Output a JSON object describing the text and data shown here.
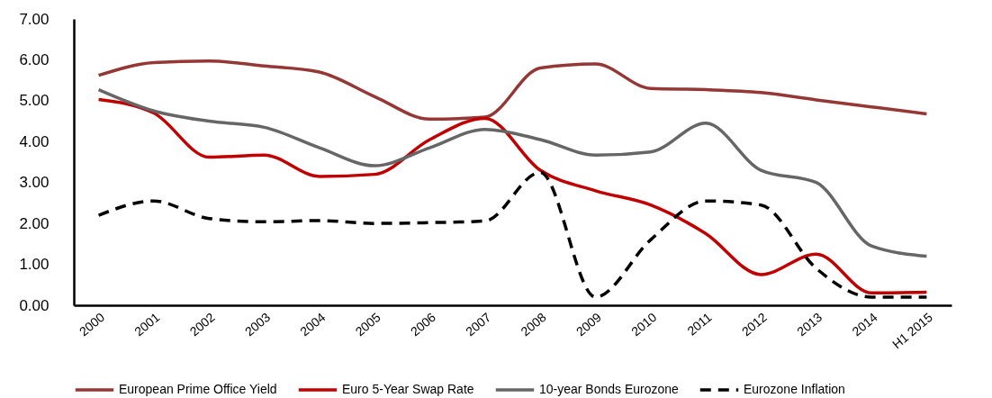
{
  "chart_data": {
    "type": "line",
    "categories": [
      "2000",
      "2001",
      "2002",
      "2003",
      "2004",
      "2005",
      "2006",
      "2007",
      "2008",
      "2009",
      "2010",
      "2011",
      "2012",
      "2013",
      "2014",
      "H1 2015"
    ],
    "series": [
      {
        "name": "European Prime Office Yield",
        "color": "#953735",
        "values": [
          5.62,
          5.93,
          5.97,
          5.85,
          5.7,
          5.1,
          4.55,
          4.6,
          5.8,
          5.9,
          5.3,
          5.27,
          5.2,
          5.02,
          4.85,
          4.68
        ]
      },
      {
        "name": "Euro 5-Year Swap Rate",
        "color": "#c00000",
        "values": [
          5.03,
          4.7,
          3.62,
          3.67,
          3.15,
          3.2,
          4.05,
          4.57,
          3.3,
          2.8,
          2.45,
          1.75,
          0.75,
          1.25,
          0.3,
          0.32
        ]
      },
      {
        "name": "10-year Bonds Eurozone",
        "color": "#666666",
        "values": [
          5.27,
          4.75,
          4.5,
          4.35,
          3.85,
          3.41,
          3.85,
          4.3,
          4.05,
          3.67,
          3.75,
          4.45,
          3.3,
          3.0,
          1.45,
          1.2
        ]
      },
      {
        "name": "Eurozone Inflation",
        "color": "#000000",
        "line_style": "dashed",
        "values": [
          2.2,
          2.55,
          2.12,
          2.04,
          2.07,
          2.0,
          2.02,
          2.06,
          3.25,
          0.2,
          1.6,
          2.55,
          2.45,
          0.9,
          0.2,
          0.2
        ]
      }
    ],
    "ylim": [
      0,
      7
    ],
    "yticks": [
      {
        "value": 0,
        "label": "0.00"
      },
      {
        "value": 1,
        "label": "1.00"
      },
      {
        "value": 2,
        "label": "2.00"
      },
      {
        "value": 3,
        "label": "3.00"
      },
      {
        "value": 4,
        "label": "4.00"
      },
      {
        "value": 5,
        "label": "5.00"
      },
      {
        "value": 6,
        "label": "6.00"
      },
      {
        "value": 7,
        "label": "7.00"
      }
    ],
    "grid": false,
    "legend": "bottom",
    "marker": "none",
    "line_style": "solid"
  }
}
